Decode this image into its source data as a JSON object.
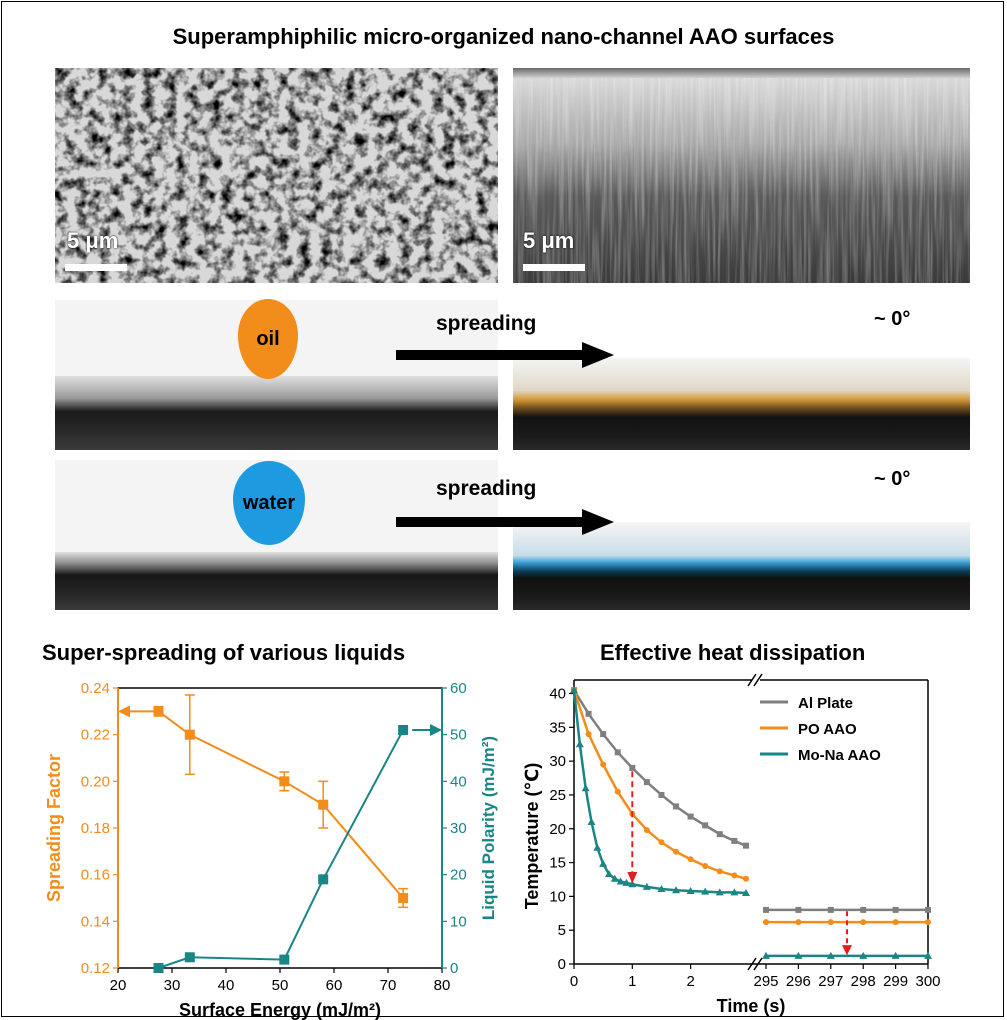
{
  "figure": {
    "title": "Superamphiphilic micro-organized nano-channel AAO surfaces",
    "scale_bar_left": "5 μm",
    "scale_bar_right": "5 μm",
    "drop_oil": "oil",
    "drop_water": "water",
    "spread_oil": "spreading",
    "spread_water": "spreading",
    "angle_oil": "~ 0°",
    "angle_water": "~ 0°",
    "left_panel_title": "Super-spreading of various liquids",
    "right_panel_title": "Effective heat dissipation",
    "colors": {
      "orange": "#F28C1B",
      "teal": "#1A8585",
      "gray": "#7F7F7F",
      "red": "#E02020",
      "water_blue": "#1E9BE0"
    }
  },
  "chart_data": [
    {
      "type": "line",
      "title": "Super-spreading of various liquids",
      "xlabel": "Surface Energy (mJ/m²)",
      "ylabel_left": "Spreading Factor",
      "ylabel_right": "Liquid Polarity (mJ/m²)",
      "xlim": [
        20,
        80
      ],
      "ylim_left": [
        0.12,
        0.24
      ],
      "ylim_right": [
        0,
        60
      ],
      "x_ticks": [
        "20",
        "30",
        "40",
        "50",
        "60",
        "70",
        "80"
      ],
      "y_left_ticks": [
        "0.12",
        "0.14",
        "0.16",
        "0.18",
        "0.20",
        "0.22",
        "0.24"
      ],
      "y_right_ticks": [
        "0",
        "10",
        "20",
        "30",
        "40",
        "50",
        "60"
      ],
      "series": [
        {
          "name": "Spreading Factor",
          "axis": "left",
          "color": "#F28C1B",
          "x": [
            27.5,
            33.3,
            50.8,
            58.0,
            72.8
          ],
          "y": [
            0.23,
            0.22,
            0.2,
            0.19,
            0.15
          ],
          "err": [
            0.002,
            0.017,
            0.004,
            0.01,
            0.004
          ]
        },
        {
          "name": "Liquid Polarity",
          "axis": "right",
          "color": "#1A8585",
          "x": [
            27.5,
            33.3,
            50.8,
            58.0,
            72.8
          ],
          "y": [
            0.0,
            2.3,
            1.8,
            19.0,
            51.0
          ]
        }
      ]
    },
    {
      "type": "line",
      "title": "Effective heat dissipation",
      "xlabel": "Time (s)",
      "ylabel": "Temperature (℃)",
      "ylim": [
        0,
        42
      ],
      "y_ticks": [
        "0",
        "5",
        "10",
        "15",
        "20",
        "25",
        "30",
        "35",
        "40"
      ],
      "x_ticks_left": [
        "0",
        "1",
        "2"
      ],
      "x_ticks_right": [
        "295",
        "296",
        "297",
        "298",
        "299",
        "300"
      ],
      "legend": [
        "Al Plate",
        "PO AAO",
        "Mo-Na AAO"
      ],
      "legend_position": "top-right",
      "series": [
        {
          "name": "Al Plate",
          "color": "#7F7F7F",
          "x": [
            0,
            0.25,
            0.5,
            0.75,
            1.0,
            1.25,
            1.5,
            1.75,
            2.0,
            2.25,
            2.5,
            2.75,
            2.95
          ],
          "y": [
            40.5,
            37.0,
            34.0,
            31.3,
            29.0,
            26.9,
            25.0,
            23.3,
            21.8,
            20.5,
            19.2,
            18.2,
            17.5
          ],
          "x_late": [
            295,
            296,
            297,
            298,
            299,
            300
          ],
          "y_late": [
            8.0,
            8.0,
            8.0,
            8.0,
            8.0,
            8.0
          ]
        },
        {
          "name": "PO AAO",
          "color": "#F28C1B",
          "x": [
            0,
            0.25,
            0.5,
            0.75,
            1.0,
            1.25,
            1.5,
            1.75,
            2.0,
            2.25,
            2.5,
            2.75,
            2.95
          ],
          "y": [
            40.5,
            34.0,
            29.5,
            25.5,
            22.2,
            19.8,
            18.0,
            16.6,
            15.5,
            14.5,
            13.7,
            13.1,
            12.6
          ],
          "x_late": [
            295,
            296,
            297,
            298,
            299,
            300
          ],
          "y_late": [
            6.2,
            6.2,
            6.2,
            6.2,
            6.2,
            6.2
          ]
        },
        {
          "name": "Mo-Na AAO",
          "color": "#1A8585",
          "x": [
            0,
            0.1,
            0.2,
            0.3,
            0.4,
            0.5,
            0.6,
            0.7,
            0.8,
            0.9,
            1.0,
            1.25,
            1.5,
            1.75,
            2.0,
            2.25,
            2.5,
            2.75,
            2.95
          ],
          "y": [
            40.5,
            32.5,
            26.0,
            21.0,
            17.2,
            14.8,
            13.3,
            12.6,
            12.2,
            12.0,
            11.8,
            11.4,
            11.1,
            10.9,
            10.8,
            10.7,
            10.6,
            10.6,
            10.5
          ],
          "x_late": [
            295,
            296,
            297,
            298,
            299,
            300
          ],
          "y_late": [
            1.2,
            1.2,
            1.2,
            1.2,
            1.2,
            1.2
          ]
        }
      ]
    }
  ]
}
